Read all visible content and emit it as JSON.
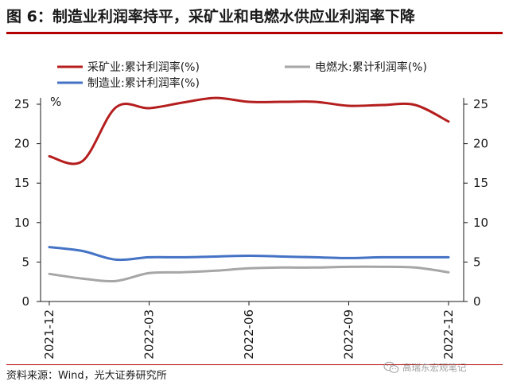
{
  "figure": {
    "title": "图 6：制造业利润率持平，采矿业和电燃水供应业利润率下降",
    "source": "资料来源：Wind，光大证券研究所",
    "watermark": "高瑞东宏观笔记",
    "watermark_icon": "wechat-icon"
  },
  "chart_data": {
    "type": "line",
    "unit_label": "%",
    "x": [
      "2021-12",
      "2022-01",
      "2022-02",
      "2022-03",
      "2022-04",
      "2022-05",
      "2022-06",
      "2022-07",
      "2022-08",
      "2022-09",
      "2022-10",
      "2022-11",
      "2022-12"
    ],
    "x_tick_labels": [
      "2021-12",
      "2022-03",
      "2022-06",
      "2022-09",
      "2022-12"
    ],
    "y_left": {
      "lim": [
        0,
        25
      ],
      "ticks": [
        "0",
        "5",
        "10",
        "15",
        "20",
        "25"
      ]
    },
    "y_right": {
      "lim": [
        0,
        25
      ],
      "ticks": [
        "0",
        "5",
        "10",
        "15",
        "20",
        "25"
      ]
    },
    "legend_placement": "top",
    "grid": false,
    "series": [
      {
        "name": "采矿业:累计利润率(%)",
        "color": "#b41e1e",
        "axis": "left",
        "values": [
          18.4,
          17.8,
          24.6,
          24.5,
          25.2,
          25.8,
          25.3,
          25.3,
          25.3,
          24.8,
          24.9,
          24.9,
          22.8
        ]
      },
      {
        "name": "电燃水:累计利润率(%)",
        "color": "#a6a6a6",
        "axis": "right",
        "values": [
          3.5,
          2.9,
          2.6,
          3.6,
          3.7,
          3.9,
          4.2,
          4.3,
          4.3,
          4.4,
          4.4,
          4.3,
          3.7
        ]
      },
      {
        "name": "制造业:累计利润率(%)",
        "color": "#4472c4",
        "axis": "left",
        "values": [
          6.9,
          6.4,
          5.3,
          5.6,
          5.6,
          5.7,
          5.8,
          5.7,
          5.6,
          5.5,
          5.6,
          5.6,
          5.6
        ]
      }
    ]
  }
}
